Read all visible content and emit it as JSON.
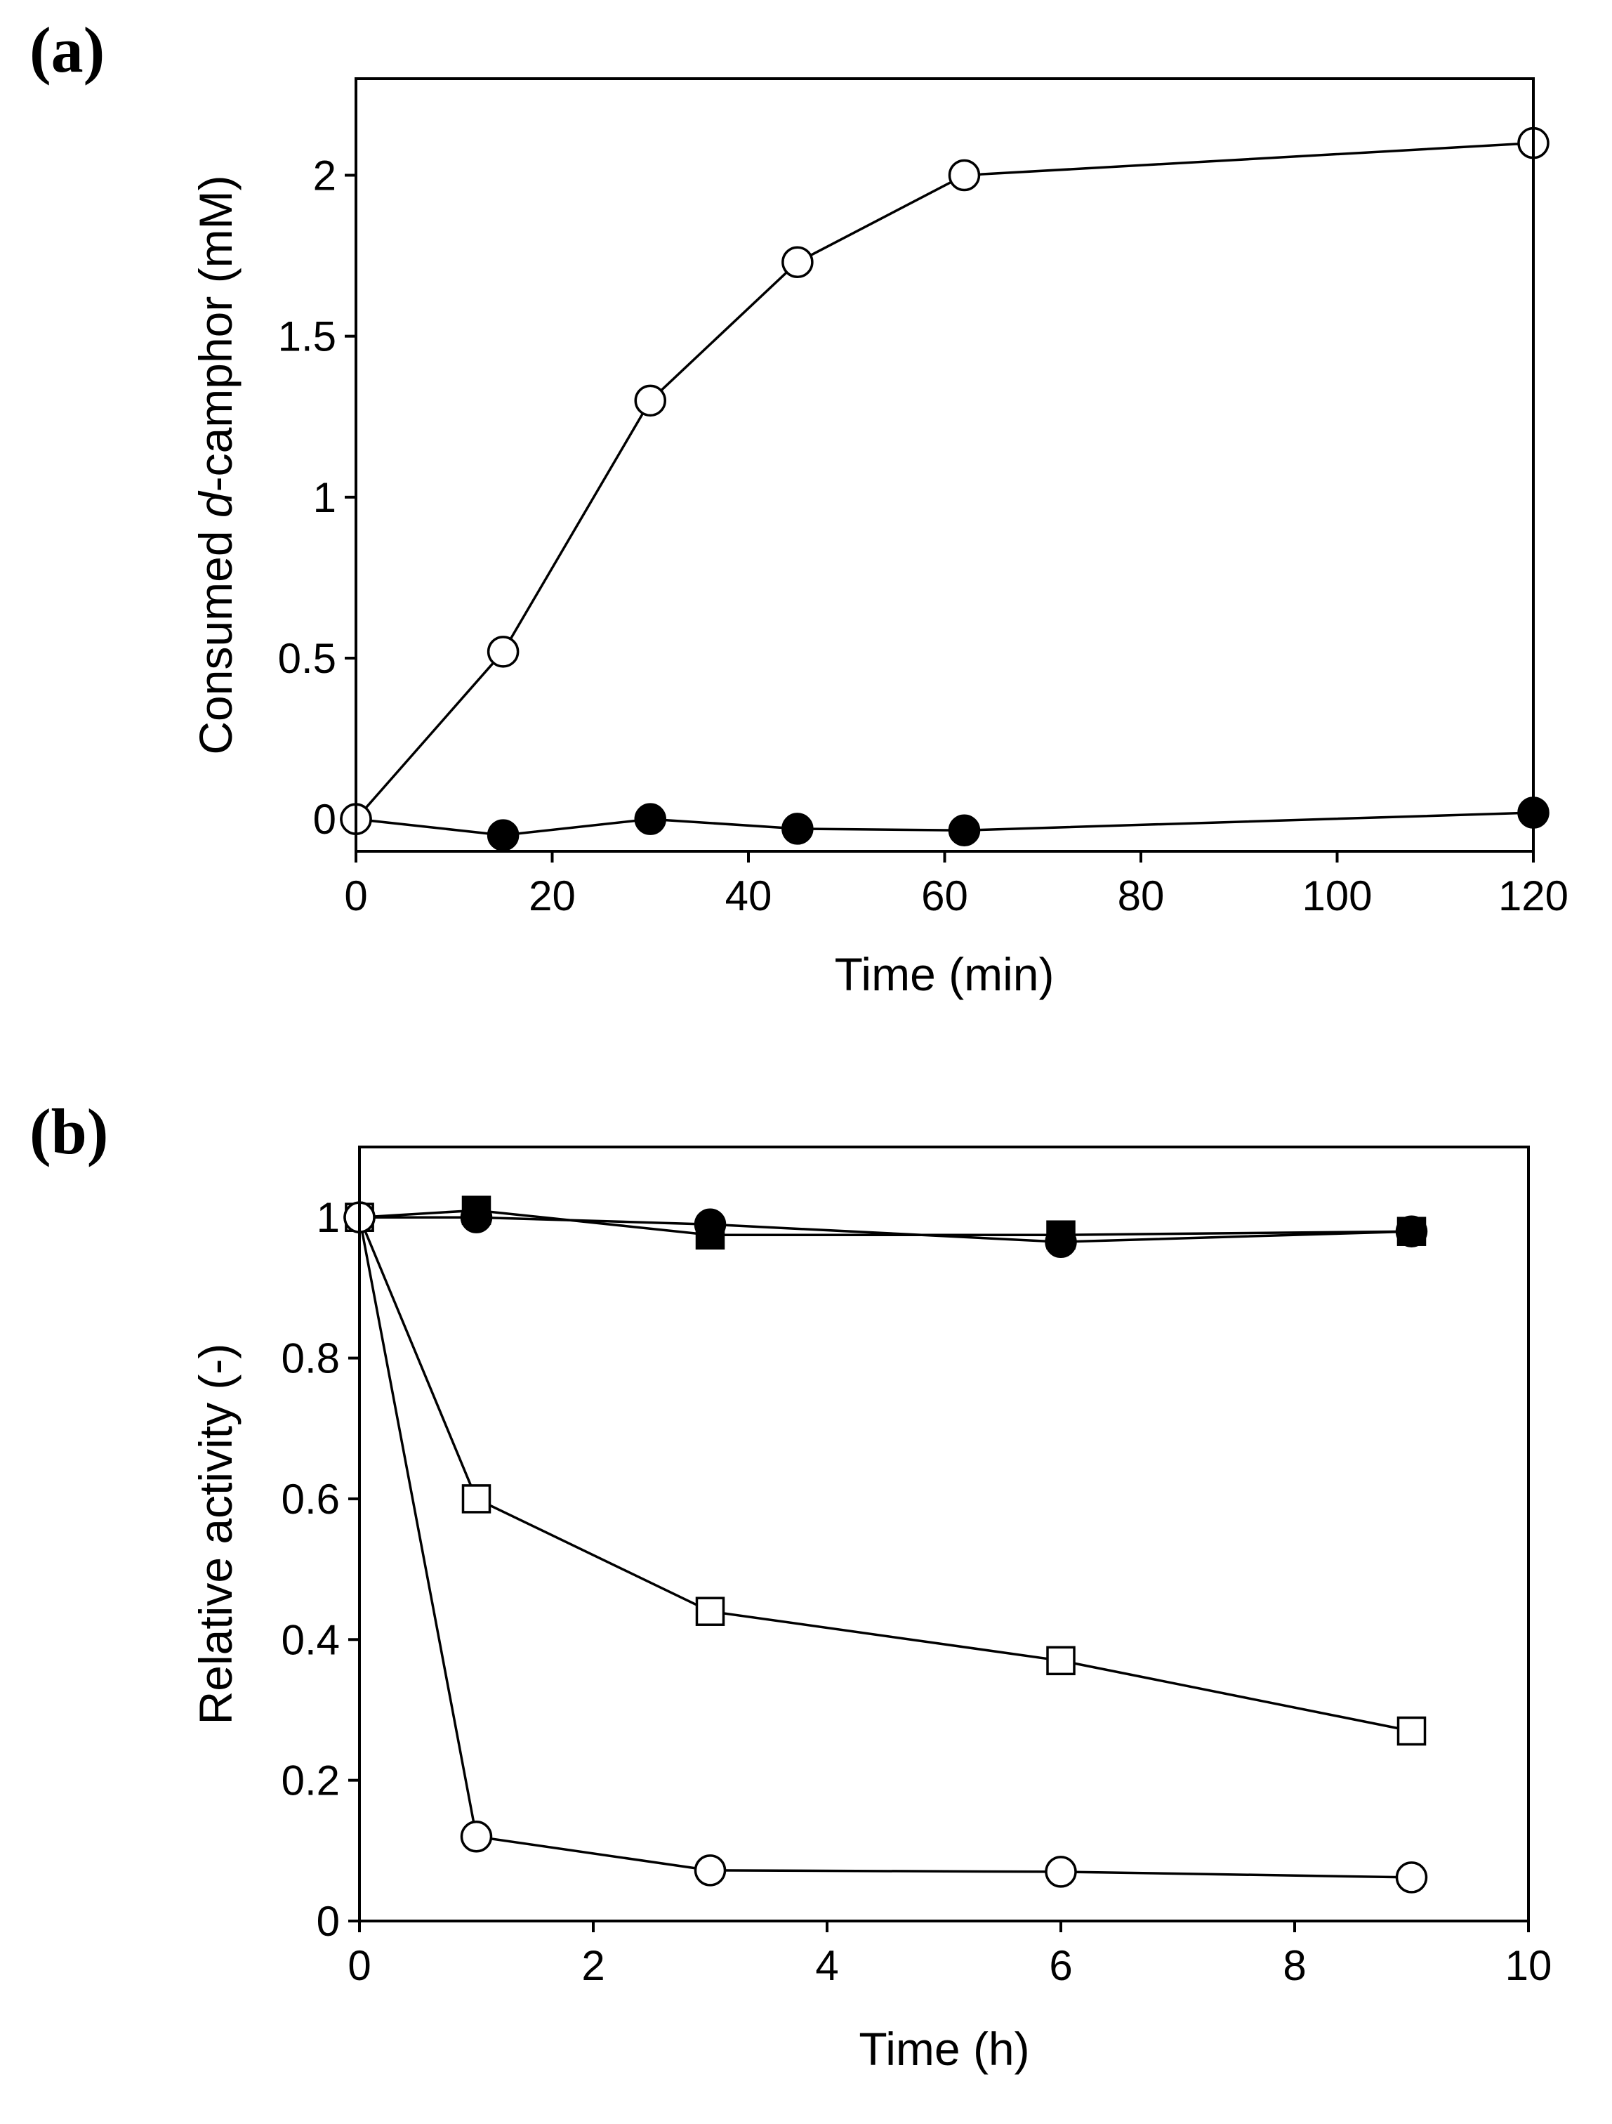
{
  "chart_data": [
    {
      "type": "line",
      "panel_label": "(a)",
      "xlabel": "Time (min)",
      "ylabel": {
        "prefix": "Consumed ",
        "italic": "d",
        "suffix": "-camphor (mM)"
      },
      "xlim": [
        0,
        120
      ],
      "ylim": [
        -0.1,
        2.3
      ],
      "xticks": [
        0,
        20,
        40,
        60,
        80,
        100,
        120
      ],
      "xtick_labels": [
        "0",
        "20",
        "40",
        "60",
        "80",
        "100",
        "120"
      ],
      "yticks": [
        0,
        0.5,
        1,
        1.5,
        2
      ],
      "ytick_labels": [
        "0",
        "0.5",
        "1",
        "1.5",
        "2"
      ],
      "series": [
        {
          "name": "open circle",
          "marker": "circle",
          "filled": false,
          "x": [
            0,
            15,
            30,
            45,
            62,
            120
          ],
          "y": [
            0,
            0.52,
            1.3,
            1.73,
            2.0,
            2.1
          ]
        },
        {
          "name": "filled circle",
          "marker": "circle",
          "filled": true,
          "x": [
            0,
            15,
            30,
            45,
            62,
            120
          ],
          "y": [
            0,
            -0.05,
            0,
            -0.03,
            -0.035,
            0.02
          ]
        }
      ]
    },
    {
      "type": "line",
      "panel_label": "(b)",
      "xlabel": "Time (h)",
      "ylabel": {
        "prefix": "Relative activity (-)",
        "italic": "",
        "suffix": ""
      },
      "xlim": [
        0,
        10
      ],
      "ylim": [
        0,
        1.1
      ],
      "xticks": [
        0,
        2,
        4,
        6,
        8,
        10
      ],
      "xtick_labels": [
        "0",
        "2",
        "4",
        "6",
        "8",
        "10"
      ],
      "yticks": [
        0,
        0.2,
        0.4,
        0.6,
        0.8,
        1
      ],
      "ytick_labels": [
        "0",
        "0.2",
        "0.4",
        "0.6",
        "0.8",
        "1"
      ],
      "series": [
        {
          "name": "filled circle",
          "marker": "circle",
          "filled": true,
          "x": [
            0,
            1,
            3,
            6,
            9
          ],
          "y": [
            1.0,
            1.0,
            0.99,
            0.965,
            0.98
          ]
        },
        {
          "name": "filled square",
          "marker": "square",
          "filled": true,
          "x": [
            0,
            1,
            3,
            6,
            9
          ],
          "y": [
            1.0,
            1.01,
            0.975,
            0.975,
            0.98
          ]
        },
        {
          "name": "open square",
          "marker": "square",
          "filled": false,
          "x": [
            0,
            1,
            3,
            6,
            9
          ],
          "y": [
            1.0,
            0.6,
            0.44,
            0.37,
            0.27
          ]
        },
        {
          "name": "open circle",
          "marker": "circle",
          "filled": false,
          "x": [
            0,
            1,
            3,
            6,
            9
          ],
          "y": [
            1.0,
            0.12,
            0.072,
            0.07,
            0.062
          ]
        }
      ]
    }
  ]
}
